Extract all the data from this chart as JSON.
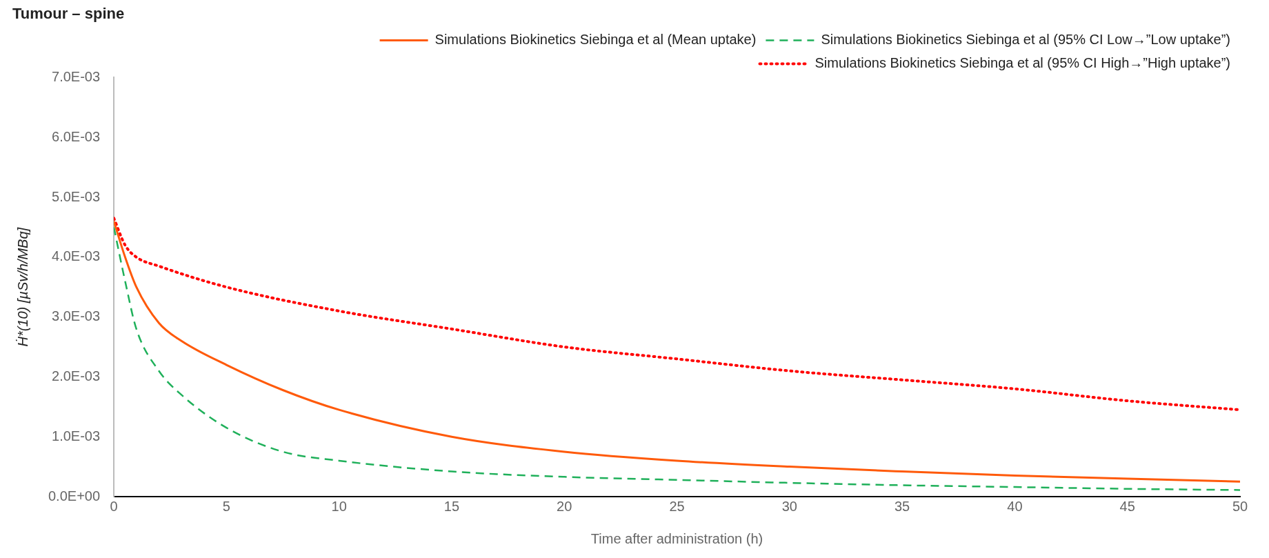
{
  "chart_data": {
    "type": "line",
    "title": "Tumour – spine",
    "xlabel": "Time after administration (h)",
    "ylabel": "Ḣ*(10) [µSv/h/MBq]",
    "xlim": [
      0,
      50
    ],
    "xticks": [
      0,
      5,
      10,
      15,
      20,
      25,
      30,
      35,
      40,
      45,
      50
    ],
    "ylim": [
      0,
      0.007
    ],
    "yticks": [
      {
        "value": 0,
        "label": "0.0E+00"
      },
      {
        "value": 0.001,
        "label": "1.0E-03"
      },
      {
        "value": 0.002,
        "label": "2.0E-03"
      },
      {
        "value": 0.003,
        "label": "3.0E-03"
      },
      {
        "value": 0.004,
        "label": "4.0E-03"
      },
      {
        "value": 0.005,
        "label": "5.0E-03"
      },
      {
        "value": 0.006,
        "label": "6.0E-03"
      },
      {
        "value": 0.007,
        "label": "7.0E-03"
      }
    ],
    "grid": false,
    "legend": "top right",
    "marker": "none",
    "series": [
      {
        "name": "Simulations Biokinetics Siebinga et al (Mean uptake)",
        "color": "#ff5a0a",
        "line_style": "solid",
        "x": [
          0,
          0.5,
          1,
          2,
          3,
          5,
          7.5,
          10,
          15,
          20,
          25,
          30,
          35,
          40,
          45,
          50
        ],
        "values": [
          0.0046,
          0.004,
          0.0035,
          0.0029,
          0.0026,
          0.0022,
          0.00178,
          0.00145,
          0.001,
          0.00075,
          0.0006,
          0.0005,
          0.00042,
          0.00035,
          0.0003,
          0.00025
        ]
      },
      {
        "name": "Simulations Biokinetics Siebinga et al (95% CI Low→”Low uptake”)",
        "color": "#1fb05a",
        "line_style": "dashed",
        "x": [
          0,
          0.5,
          1,
          2,
          3,
          5,
          7.5,
          10,
          15,
          20,
          25,
          30,
          35,
          40,
          45,
          50
        ],
        "values": [
          0.0045,
          0.0036,
          0.0028,
          0.0021,
          0.0017,
          0.00115,
          0.00075,
          0.0006,
          0.00042,
          0.00033,
          0.00028,
          0.00023,
          0.00019,
          0.00016,
          0.00013,
          0.00011
        ]
      },
      {
        "name": "Simulations Biokinetics Siebinga et al (95% CI High→”High uptake”)",
        "color": "#ff0000",
        "line_style": "dotted",
        "x": [
          0,
          0.5,
          1,
          2,
          5,
          10,
          15,
          20,
          25,
          30,
          35,
          40,
          45,
          50
        ],
        "values": [
          0.00465,
          0.0042,
          0.004,
          0.00385,
          0.0035,
          0.0031,
          0.0028,
          0.0025,
          0.0023,
          0.0021,
          0.00195,
          0.0018,
          0.0016,
          0.00145
        ]
      }
    ]
  }
}
